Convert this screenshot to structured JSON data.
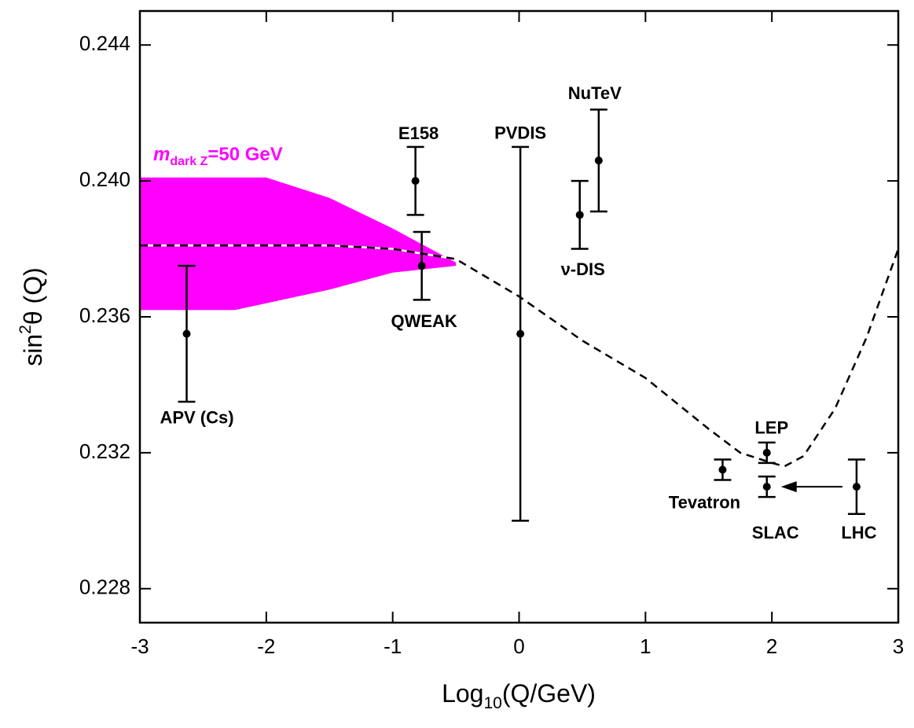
{
  "chart_data": {
    "type": "scatter",
    "x_label": [
      "Log",
      "10",
      "(Q/GeV)"
    ],
    "y_label": [
      "sin",
      "2",
      "θ (Q)"
    ],
    "xlim": [
      -3,
      3
    ],
    "xticks": [
      -3,
      -2,
      -1,
      0,
      1,
      2,
      3
    ],
    "ylim": [
      0.227,
      0.245
    ],
    "yticks": [
      0.228,
      0.232,
      0.236,
      {
        "value": 0.24,
        "label": "0.240"
      },
      0.244
    ],
    "point_labels": [
      "APV (Cs)",
      "E158",
      "QWEAK",
      "PVDIS",
      "ν-DIS",
      "NuTeV",
      "Tevatron",
      "LEP",
      "SLAC",
      "LHC"
    ],
    "x": [
      -2.63,
      -0.82,
      -0.77,
      0.01,
      0.48,
      0.63,
      1.61,
      1.96,
      1.96,
      2.67
    ],
    "values": [
      0.2355,
      0.24,
      0.2375,
      0.2355,
      0.239,
      0.2406,
      0.2315,
      0.232,
      0.231,
      0.231
    ],
    "errors": [
      0.002,
      0.001,
      0.001,
      0.0055,
      0.001,
      0.0015,
      0.0003,
      0.0003,
      0.0003,
      0.0008
    ],
    "color": "#000000",
    "curve": {
      "x": [
        -3,
        -1.5,
        -1,
        -0.5,
        0,
        0.5,
        1,
        1.5,
        1.75,
        2,
        2.1,
        2.25,
        2.5,
        2.75,
        3
      ],
      "values": [
        0.2381,
        0.2381,
        0.238,
        0.2377,
        0.2366,
        0.2353,
        0.2342,
        0.2327,
        0.232,
        0.2317,
        0.2316,
        0.2319,
        0.2333,
        0.2354,
        0.238
      ]
    },
    "band": {
      "color": "#ff00ff",
      "label": [
        "m",
        "dark Z",
        "=50 GeV"
      ],
      "x": [
        -3,
        -2.25,
        -2,
        -1.5,
        -1,
        -0.5
      ],
      "upper": [
        0.2401,
        0.2401,
        0.2401,
        0.2395,
        0.2386,
        0.2376
      ],
      "lower": [
        0.2362,
        0.2362,
        0.2364,
        0.2368,
        0.2373,
        0.2375
      ]
    }
  }
}
